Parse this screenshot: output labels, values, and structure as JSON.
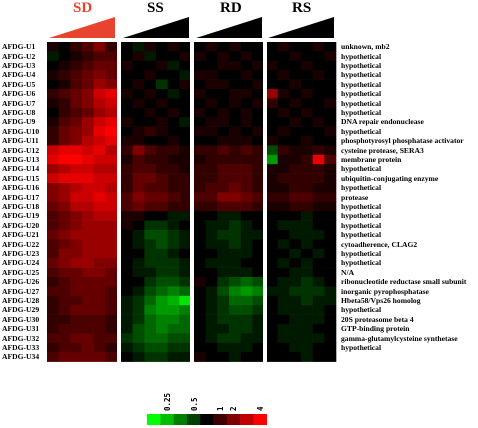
{
  "panels": [
    {
      "title": "SD",
      "color": "#e8432e"
    },
    {
      "title": "SS",
      "color": "#000000"
    },
    {
      "title": "RD",
      "color": "#000000"
    },
    {
      "title": "RS",
      "color": "#000000"
    }
  ],
  "row_labels": [
    "AFDG-U1",
    "AFDG-U2",
    "AFDG-U3",
    "AFDG-U4",
    "AFDG-U5",
    "AFDG-U6",
    "AFDG-U7",
    "AFDG-U8",
    "AFDG-U9",
    "AFDG-U10",
    "AFDG-U11",
    "AFDG-U12",
    "AFDG-U13",
    "AFDG-U14",
    "AFDG-U15",
    "AFDG-U16",
    "AFDG-U17",
    "AFDG-U18",
    "AFDG-U19",
    "AFDG-U20",
    "AFDG-U21",
    "AFDG-U22",
    "AFDG-U23",
    "AFDG-U24",
    "AFDG-U25",
    "AFDG-U26",
    "AFDG-U27",
    "AFDG-U28",
    "AFDG-U29",
    "AFDG-U30",
    "AFDG-U31",
    "AFDG-U32",
    "AFDG-U33",
    "AFDG-U34"
  ],
  "gene_labels": [
    "unknown, mb2",
    "hypothetical",
    "hypothetical",
    "hypothetical",
    "hypothetical",
    "hypothetical",
    "hypothetical",
    "hypothetical",
    "DNA repair endonuclease",
    "hypothetical",
    "phosphotyrosyl phosphatase activator",
    "cysteine protease, SERA3",
    "membrane protein",
    "hypothetical",
    "ubiquitin-conjugating enzyme",
    "hypothetical",
    "protease",
    "hypothetical",
    "hypothetical",
    "hypothetical",
    "hypothetical",
    "cytoadherence, CLAG2",
    "hypothetical",
    "hypothetical",
    "N/A",
    "ribonucleotide reductase small subunit",
    "inorganic pyrophosphatase",
    "Hbeta58/Vps26 homolog",
    "hypothetical",
    "20S proteasome beta 4",
    "GTP-binding protein",
    "gamma-glutamylcysteine synthetase",
    "hypothetical",
    ""
  ],
  "legend": {
    "tick_labels": [
      "0.25",
      "0.5",
      "1",
      "2",
      "4"
    ],
    "colors": [
      "#00ff00",
      "#00c000",
      "#008000",
      "#004000",
      "#000000",
      "#400000",
      "#800000",
      "#c00000",
      "#ff0000"
    ]
  },
  "heatmap": {
    "columns_per_panel": 6,
    "values": {
      "SD": [
        [
          0.1,
          0.0,
          0.2,
          0.3,
          0.5,
          0.2
        ],
        [
          -0.1,
          0.0,
          0.1,
          0.2,
          0.3,
          0.3
        ],
        [
          0.0,
          0.1,
          0.2,
          0.3,
          0.4,
          0.4
        ],
        [
          0.1,
          0.2,
          0.3,
          0.4,
          0.5,
          0.4
        ],
        [
          0.0,
          0.1,
          0.3,
          0.4,
          0.6,
          0.5
        ],
        [
          0.2,
          0.3,
          0.4,
          0.5,
          0.8,
          0.9
        ],
        [
          0.1,
          0.2,
          0.4,
          0.5,
          0.7,
          0.8
        ],
        [
          0.0,
          0.2,
          0.3,
          0.4,
          0.6,
          0.7
        ],
        [
          0.1,
          0.3,
          0.4,
          0.6,
          0.8,
          0.9
        ],
        [
          0.2,
          0.4,
          0.5,
          0.6,
          0.9,
          1.0
        ],
        [
          0.2,
          0.4,
          0.5,
          0.7,
          0.8,
          0.9
        ],
        [
          0.8,
          0.9,
          0.9,
          0.8,
          0.9,
          0.7
        ],
        [
          0.9,
          1.0,
          1.0,
          0.9,
          0.8,
          0.8
        ],
        [
          0.6,
          0.7,
          0.8,
          0.8,
          0.7,
          0.7
        ],
        [
          0.8,
          0.9,
          0.9,
          0.9,
          0.8,
          0.8
        ],
        [
          0.5,
          0.6,
          0.7,
          0.8,
          0.8,
          0.7
        ],
        [
          0.5,
          0.6,
          0.8,
          0.8,
          0.9,
          0.8
        ],
        [
          0.4,
          0.5,
          0.7,
          0.7,
          0.8,
          0.8
        ],
        [
          0.3,
          0.4,
          0.5,
          0.6,
          0.7,
          0.7
        ],
        [
          0.3,
          0.4,
          0.5,
          0.6,
          0.6,
          0.6
        ],
        [
          0.4,
          0.5,
          0.6,
          0.6,
          0.6,
          0.6
        ],
        [
          0.3,
          0.4,
          0.5,
          0.6,
          0.6,
          0.6
        ],
        [
          0.3,
          0.5,
          0.5,
          0.6,
          0.6,
          0.6
        ],
        [
          0.4,
          0.5,
          0.6,
          0.6,
          0.5,
          0.5
        ],
        [
          0.3,
          0.4,
          0.4,
          0.5,
          0.5,
          0.4
        ],
        [
          0.2,
          0.3,
          0.4,
          0.4,
          0.4,
          0.4
        ],
        [
          0.3,
          0.3,
          0.4,
          0.4,
          0.4,
          0.3
        ],
        [
          0.2,
          0.3,
          0.3,
          0.4,
          0.4,
          0.3
        ],
        [
          0.2,
          0.3,
          0.4,
          0.4,
          0.4,
          0.3
        ],
        [
          0.2,
          0.2,
          0.3,
          0.3,
          0.3,
          0.2
        ],
        [
          0.2,
          0.3,
          0.3,
          0.3,
          0.3,
          0.2
        ],
        [
          0.3,
          0.3,
          0.4,
          0.4,
          0.3,
          0.3
        ],
        [
          0.2,
          0.3,
          0.3,
          0.4,
          0.3,
          0.2
        ],
        [
          0.3,
          0.4,
          0.4,
          0.4,
          0.4,
          0.3
        ]
      ],
      "SS": [
        [
          0.0,
          -0.1,
          0.1,
          0.0,
          0.1,
          0.0
        ],
        [
          0.0,
          0.1,
          -0.1,
          0.0,
          0.0,
          0.1
        ],
        [
          0.1,
          0.0,
          0.0,
          0.1,
          -0.1,
          0.0
        ],
        [
          0.0,
          0.0,
          0.1,
          0.0,
          0.0,
          -0.1
        ],
        [
          0.0,
          0.1,
          0.0,
          -0.2,
          0.0,
          0.1
        ],
        [
          0.1,
          0.0,
          0.1,
          0.0,
          -0.1,
          0.0
        ],
        [
          0.0,
          0.1,
          0.0,
          0.1,
          0.0,
          0.0
        ],
        [
          0.0,
          0.0,
          0.1,
          0.0,
          0.1,
          0.0
        ],
        [
          0.1,
          0.0,
          0.0,
          0.1,
          0.0,
          -0.1
        ],
        [
          0.0,
          0.1,
          0.2,
          0.1,
          0.0,
          0.0
        ],
        [
          0.1,
          0.1,
          0.0,
          0.0,
          0.1,
          0.0
        ],
        [
          0.2,
          0.5,
          0.3,
          0.2,
          0.2,
          0.1
        ],
        [
          0.1,
          0.3,
          0.2,
          0.2,
          0.1,
          0.1
        ],
        [
          0.2,
          0.3,
          0.3,
          0.2,
          0.2,
          0.1
        ],
        [
          0.2,
          0.4,
          0.4,
          0.3,
          0.2,
          0.2
        ],
        [
          0.2,
          0.4,
          0.3,
          0.3,
          0.2,
          0.2
        ],
        [
          0.3,
          0.5,
          0.4,
          0.4,
          0.3,
          0.2
        ],
        [
          0.3,
          0.4,
          0.3,
          0.3,
          0.2,
          0.2
        ],
        [
          0.1,
          0.1,
          0.0,
          0.0,
          -0.1,
          -0.1
        ],
        [
          0.1,
          0.0,
          -0.2,
          -0.2,
          -0.1,
          0.0
        ],
        [
          0.0,
          -0.1,
          -0.3,
          -0.3,
          -0.2,
          -0.1
        ],
        [
          0.0,
          -0.1,
          -0.2,
          -0.3,
          -0.2,
          -0.1
        ],
        [
          0.0,
          0.0,
          -0.2,
          -0.2,
          -0.1,
          0.0
        ],
        [
          0.0,
          -0.1,
          -0.2,
          -0.2,
          -0.2,
          -0.1
        ],
        [
          0.0,
          -0.1,
          -0.1,
          -0.2,
          -0.2,
          -0.1
        ],
        [
          0.0,
          0.0,
          -0.2,
          -0.3,
          -0.3,
          -0.2
        ],
        [
          0.0,
          -0.1,
          -0.3,
          -0.4,
          -0.5,
          -0.4
        ],
        [
          -0.1,
          -0.2,
          -0.4,
          -0.6,
          -0.7,
          -0.9
        ],
        [
          -0.1,
          -0.2,
          -0.5,
          -0.6,
          -0.6,
          -0.5
        ],
        [
          -0.1,
          -0.2,
          -0.4,
          -0.5,
          -0.5,
          -0.4
        ],
        [
          -0.1,
          -0.3,
          -0.4,
          -0.5,
          -0.4,
          -0.4
        ],
        [
          -0.2,
          -0.3,
          -0.4,
          -0.4,
          -0.3,
          -0.3
        ],
        [
          -0.1,
          -0.2,
          -0.3,
          -0.3,
          -0.2,
          -0.2
        ],
        [
          0.0,
          -0.1,
          -0.2,
          -0.2,
          -0.1,
          -0.1
        ]
      ],
      "RD": [
        [
          0.0,
          0.1,
          0.0,
          0.1,
          0.0,
          0.0
        ],
        [
          0.1,
          0.0,
          0.1,
          0.0,
          0.1,
          0.0
        ],
        [
          0.0,
          0.0,
          0.1,
          0.1,
          0.0,
          0.1
        ],
        [
          0.1,
          0.1,
          0.0,
          0.0,
          0.1,
          0.0
        ],
        [
          0.0,
          0.1,
          0.1,
          0.0,
          0.0,
          0.1
        ],
        [
          0.1,
          0.0,
          0.0,
          0.1,
          0.1,
          0.0
        ],
        [
          0.0,
          0.1,
          0.0,
          0.1,
          0.0,
          0.1
        ],
        [
          0.1,
          0.0,
          0.1,
          0.0,
          0.1,
          0.0
        ],
        [
          0.0,
          0.1,
          0.1,
          0.0,
          0.1,
          0.0
        ],
        [
          0.1,
          0.1,
          0.0,
          0.1,
          0.0,
          0.1
        ],
        [
          0.0,
          0.0,
          0.1,
          0.1,
          0.1,
          0.0
        ],
        [
          0.2,
          0.2,
          0.3,
          0.2,
          0.3,
          0.2
        ],
        [
          0.1,
          0.2,
          0.2,
          0.2,
          0.2,
          0.2
        ],
        [
          0.2,
          0.2,
          0.3,
          0.3,
          0.3,
          0.2
        ],
        [
          0.2,
          0.2,
          0.3,
          0.3,
          0.3,
          0.2
        ],
        [
          0.2,
          0.3,
          0.3,
          0.4,
          0.3,
          0.2
        ],
        [
          0.3,
          0.3,
          0.5,
          0.5,
          0.4,
          0.3
        ],
        [
          0.2,
          0.2,
          0.3,
          0.3,
          0.3,
          0.2
        ],
        [
          0.0,
          0.0,
          -0.1,
          -0.1,
          0.0,
          0.0
        ],
        [
          0.0,
          -0.1,
          -0.1,
          -0.2,
          -0.1,
          0.0
        ],
        [
          0.0,
          -0.1,
          -0.2,
          -0.2,
          -0.1,
          -0.1
        ],
        [
          0.0,
          -0.1,
          -0.1,
          -0.2,
          -0.1,
          0.0
        ],
        [
          0.0,
          0.0,
          -0.1,
          -0.1,
          -0.1,
          0.0
        ],
        [
          0.0,
          -0.1,
          -0.1,
          -0.1,
          0.0,
          0.0
        ],
        [
          0.0,
          0.0,
          -0.1,
          -0.1,
          -0.1,
          0.0
        ],
        [
          0.1,
          0.0,
          -0.2,
          -0.3,
          -0.4,
          -0.3
        ],
        [
          0.0,
          -0.1,
          -0.3,
          -0.5,
          -0.6,
          -0.5
        ],
        [
          0.0,
          -0.1,
          -0.2,
          -0.4,
          -0.4,
          -0.3
        ],
        [
          0.0,
          -0.1,
          -0.2,
          -0.3,
          -0.3,
          -0.2
        ],
        [
          0.0,
          -0.1,
          -0.2,
          -0.2,
          -0.2,
          -0.1
        ],
        [
          0.0,
          -0.1,
          -0.1,
          -0.2,
          -0.2,
          -0.1
        ],
        [
          0.0,
          -0.1,
          -0.2,
          -0.2,
          -0.1,
          -0.1
        ],
        [
          0.0,
          0.0,
          -0.1,
          -0.1,
          -0.1,
          0.0
        ],
        [
          0.1,
          0.0,
          0.0,
          -0.1,
          0.0,
          0.0
        ]
      ],
      "RS": [
        [
          0.0,
          0.1,
          0.0,
          0.0,
          0.1,
          0.0
        ],
        [
          0.0,
          0.0,
          0.1,
          0.0,
          0.0,
          0.1
        ],
        [
          0.1,
          0.0,
          0.0,
          0.1,
          0.0,
          0.0
        ],
        [
          0.0,
          0.1,
          0.0,
          0.0,
          0.1,
          0.0
        ],
        [
          0.0,
          0.0,
          0.1,
          0.0,
          0.0,
          0.0
        ],
        [
          0.6,
          0.1,
          0.0,
          0.1,
          0.0,
          0.0
        ],
        [
          0.2,
          0.0,
          0.1,
          0.0,
          0.0,
          0.1
        ],
        [
          0.0,
          0.1,
          0.0,
          0.1,
          0.0,
          0.0
        ],
        [
          0.0,
          0.0,
          0.1,
          0.0,
          0.1,
          0.0
        ],
        [
          0.0,
          0.1,
          0.0,
          0.0,
          0.0,
          0.1
        ],
        [
          0.1,
          0.0,
          0.0,
          0.1,
          0.0,
          0.0
        ],
        [
          -0.3,
          0.2,
          0.1,
          0.1,
          0.2,
          0.1
        ],
        [
          -0.6,
          0.1,
          0.1,
          0.2,
          0.9,
          0.3
        ],
        [
          0.1,
          0.1,
          0.2,
          0.2,
          0.2,
          0.1
        ],
        [
          0.1,
          0.2,
          0.2,
          0.2,
          0.2,
          0.1
        ],
        [
          0.1,
          0.1,
          0.2,
          0.2,
          0.1,
          0.1
        ],
        [
          0.2,
          0.2,
          0.3,
          0.3,
          0.2,
          0.2
        ],
        [
          0.1,
          0.1,
          0.2,
          0.2,
          0.1,
          0.1
        ],
        [
          0.0,
          0.0,
          0.0,
          -0.1,
          0.0,
          0.0
        ],
        [
          0.0,
          -0.1,
          -0.1,
          -0.1,
          0.0,
          0.0
        ],
        [
          0.0,
          0.0,
          -0.1,
          -0.1,
          -0.1,
          0.0
        ],
        [
          0.0,
          -0.1,
          0.0,
          -0.1,
          0.0,
          0.0
        ],
        [
          0.0,
          0.0,
          -0.1,
          0.0,
          -0.1,
          0.0
        ],
        [
          0.0,
          -0.1,
          0.0,
          -0.1,
          0.0,
          0.0
        ],
        [
          0.0,
          0.0,
          -0.1,
          -0.1,
          0.0,
          0.0
        ],
        [
          0.0,
          -0.1,
          -0.1,
          -0.2,
          -0.1,
          0.0
        ],
        [
          -0.1,
          -0.1,
          -0.2,
          -0.2,
          -0.2,
          -0.1
        ],
        [
          0.0,
          -0.1,
          -0.1,
          -0.2,
          -0.1,
          -0.1
        ],
        [
          0.0,
          -0.1,
          -0.1,
          -0.1,
          -0.1,
          0.0
        ],
        [
          0.0,
          0.0,
          -0.1,
          -0.1,
          -0.1,
          0.0
        ],
        [
          0.0,
          -0.1,
          -0.1,
          -0.1,
          0.0,
          0.0
        ],
        [
          0.0,
          -0.1,
          -0.1,
          -0.1,
          -0.1,
          0.0
        ],
        [
          0.0,
          0.0,
          -0.1,
          -0.1,
          0.0,
          0.0
        ],
        [
          0.0,
          0.0,
          0.0,
          -0.1,
          0.0,
          0.0
        ]
      ]
    }
  }
}
